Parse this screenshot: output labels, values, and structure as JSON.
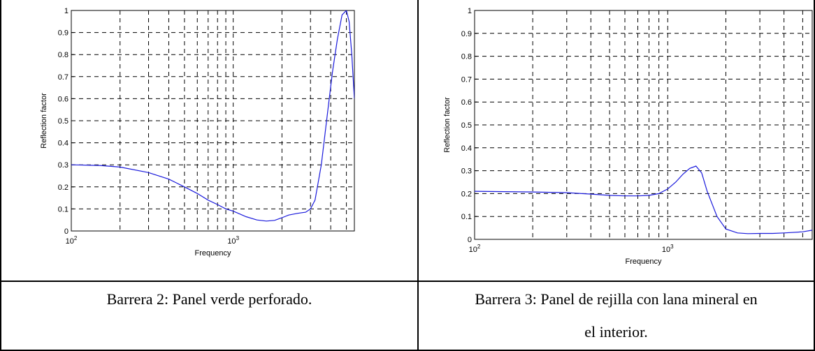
{
  "captions": {
    "left": "Barrera 2: Panel verde perforado.",
    "right_line1": "Barrera 3: Panel de rejilla con lana mineral en",
    "right_line2": "el interior."
  },
  "line_color": "#1a1adc",
  "chart_data": [
    {
      "type": "line",
      "xlabel": "Frequency",
      "ylabel": "Reflection factor",
      "xscale": "log",
      "xlim": [
        100,
        5600
      ],
      "ylim": [
        0,
        1
      ],
      "x_ticks": [
        "10^2",
        "10^3"
      ],
      "y_ticks": [
        "0",
        "0.1",
        "0.2",
        "0.3",
        "0.4",
        "0.5",
        "0.6",
        "0.7",
        "0.8",
        "0.9",
        "1"
      ],
      "grid": true,
      "series": [
        {
          "x": [
            100,
            150,
            200,
            300,
            400,
            500,
            600,
            700,
            800,
            900,
            1000,
            1200,
            1400,
            1600,
            1800,
            2000,
            2200,
            2500,
            2800,
            3000,
            3200,
            3500,
            3800,
            4100,
            4400,
            4700,
            5000,
            5200,
            5400,
            5600
          ],
          "y": [
            0.3,
            0.297,
            0.29,
            0.265,
            0.235,
            0.2,
            0.17,
            0.14,
            0.12,
            0.1,
            0.09,
            0.065,
            0.05,
            0.045,
            0.048,
            0.06,
            0.072,
            0.08,
            0.085,
            0.1,
            0.14,
            0.3,
            0.52,
            0.72,
            0.87,
            0.98,
            1.0,
            0.95,
            0.8,
            0.6
          ]
        }
      ]
    },
    {
      "type": "line",
      "xlabel": "Frequency",
      "ylabel": "Reflection factor",
      "xscale": "log",
      "xlim": [
        100,
        5600
      ],
      "ylim": [
        0,
        1
      ],
      "x_ticks": [
        "10^2",
        "10^3"
      ],
      "y_ticks": [
        "0",
        "0.1",
        "0.2",
        "0.3",
        "0.4",
        "0.5",
        "0.6",
        "0.7",
        "0.8",
        "0.9",
        "1"
      ],
      "grid": true,
      "series": [
        {
          "x": [
            100,
            200,
            300,
            400,
            500,
            600,
            700,
            800,
            900,
            1000,
            1100,
            1200,
            1300,
            1400,
            1500,
            1600,
            1800,
            2000,
            2300,
            2600,
            3000,
            3500,
            4000,
            5000,
            5600
          ],
          "y": [
            0.21,
            0.207,
            0.204,
            0.198,
            0.192,
            0.19,
            0.19,
            0.192,
            0.2,
            0.22,
            0.25,
            0.285,
            0.31,
            0.32,
            0.29,
            0.21,
            0.1,
            0.045,
            0.028,
            0.025,
            0.026,
            0.026,
            0.028,
            0.033,
            0.04
          ]
        }
      ]
    }
  ]
}
